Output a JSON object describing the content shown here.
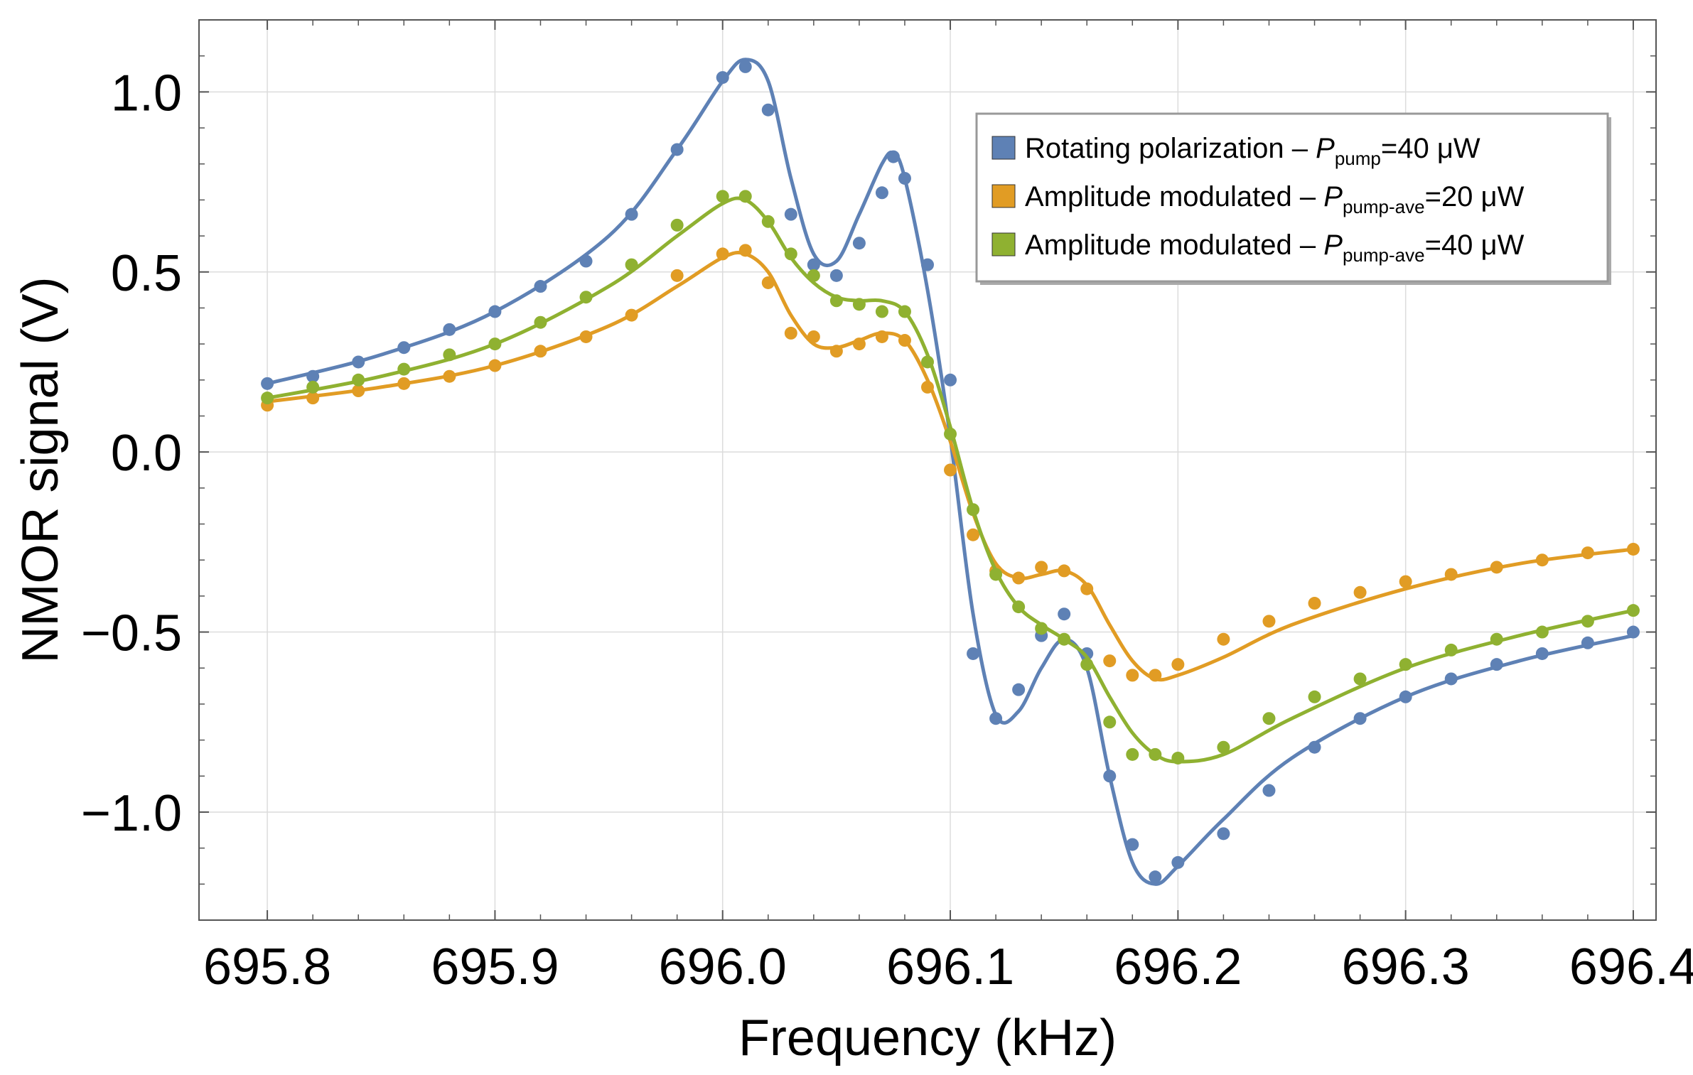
{
  "chart_data": {
    "type": "scatter",
    "title": "",
    "xlabel": "Frequency (kHz)",
    "ylabel": "NMOR signal (V)",
    "xlim": [
      695.77,
      696.41
    ],
    "ylim": [
      -1.3,
      1.2
    ],
    "xticks": [
      695.8,
      695.9,
      696.0,
      696.1,
      696.2,
      696.3,
      696.4
    ],
    "xtick_labels": [
      "695.8",
      "695.9",
      "696.0",
      "696.1",
      "696.2",
      "696.3",
      "696.4"
    ],
    "yticks": [
      1.0,
      0.5,
      0.0,
      -0.5,
      -1.0
    ],
    "ytick_labels": [
      "1.0",
      "0.5",
      "0.0",
      "−0.5",
      "−1.0"
    ],
    "grid": true,
    "legend_position": "top-right",
    "series": [
      {
        "name": "Rotating polarization",
        "legend_label": {
          "prefix": "Rotating polarization – ",
          "var": "P",
          "sub": "pump",
          "suffix": "=40 μW"
        },
        "color": "#5e81b5",
        "fit": [
          [
            695.8,
            0.19
          ],
          [
            695.85,
            0.27
          ],
          [
            695.9,
            0.39
          ],
          [
            695.95,
            0.6
          ],
          [
            695.98,
            0.84
          ],
          [
            696.0,
            1.03
          ],
          [
            696.01,
            1.09
          ],
          [
            696.02,
            1.03
          ],
          [
            696.03,
            0.76
          ],
          [
            696.04,
            0.55
          ],
          [
            696.05,
            0.53
          ],
          [
            696.06,
            0.66
          ],
          [
            696.07,
            0.8
          ],
          [
            696.075,
            0.83
          ],
          [
            696.08,
            0.76
          ],
          [
            696.09,
            0.45
          ],
          [
            696.1,
            0.04
          ],
          [
            696.11,
            -0.45
          ],
          [
            696.12,
            -0.73
          ],
          [
            696.13,
            -0.72
          ],
          [
            696.14,
            -0.6
          ],
          [
            696.15,
            -0.52
          ],
          [
            696.16,
            -0.6
          ],
          [
            696.17,
            -0.9
          ],
          [
            696.18,
            -1.14
          ],
          [
            696.19,
            -1.2
          ],
          [
            696.2,
            -1.15
          ],
          [
            696.22,
            -1.02
          ],
          [
            696.25,
            -0.85
          ],
          [
            696.3,
            -0.68
          ],
          [
            696.35,
            -0.58
          ],
          [
            696.4,
            -0.51
          ]
        ],
        "points": [
          [
            695.8,
            0.19
          ],
          [
            695.82,
            0.21
          ],
          [
            695.84,
            0.25
          ],
          [
            695.86,
            0.29
          ],
          [
            695.88,
            0.34
          ],
          [
            695.9,
            0.39
          ],
          [
            695.92,
            0.46
          ],
          [
            695.94,
            0.53
          ],
          [
            695.96,
            0.66
          ],
          [
            695.98,
            0.84
          ],
          [
            696.0,
            1.04
          ],
          [
            696.01,
            1.07
          ],
          [
            696.02,
            0.95
          ],
          [
            696.03,
            0.66
          ],
          [
            696.04,
            0.52
          ],
          [
            696.05,
            0.49
          ],
          [
            696.06,
            0.58
          ],
          [
            696.07,
            0.72
          ],
          [
            696.075,
            0.82
          ],
          [
            696.08,
            0.76
          ],
          [
            696.09,
            0.52
          ],
          [
            696.1,
            0.2
          ],
          [
            696.11,
            -0.56
          ],
          [
            696.12,
            -0.74
          ],
          [
            696.13,
            -0.66
          ],
          [
            696.14,
            -0.51
          ],
          [
            696.15,
            -0.45
          ],
          [
            696.16,
            -0.56
          ],
          [
            696.17,
            -0.9
          ],
          [
            696.18,
            -1.09
          ],
          [
            696.19,
            -1.18
          ],
          [
            696.2,
            -1.14
          ],
          [
            696.22,
            -1.06
          ],
          [
            696.24,
            -0.94
          ],
          [
            696.26,
            -0.82
          ],
          [
            696.28,
            -0.74
          ],
          [
            696.3,
            -0.68
          ],
          [
            696.32,
            -0.63
          ],
          [
            696.34,
            -0.59
          ],
          [
            696.36,
            -0.56
          ],
          [
            696.38,
            -0.53
          ],
          [
            696.4,
            -0.5
          ]
        ]
      },
      {
        "name": "Amplitude modulated 20 μW",
        "legend_label": {
          "prefix": "Amplitude modulated – ",
          "var": "P",
          "sub": "pump-ave",
          "suffix": "=20 μW"
        },
        "color": "#e19c24",
        "fit": [
          [
            695.8,
            0.14
          ],
          [
            695.85,
            0.18
          ],
          [
            695.9,
            0.24
          ],
          [
            695.95,
            0.35
          ],
          [
            695.98,
            0.46
          ],
          [
            696.0,
            0.54
          ],
          [
            696.01,
            0.55
          ],
          [
            696.02,
            0.5
          ],
          [
            696.03,
            0.38
          ],
          [
            696.04,
            0.3
          ],
          [
            696.05,
            0.29
          ],
          [
            696.06,
            0.31
          ],
          [
            696.07,
            0.33
          ],
          [
            696.08,
            0.31
          ],
          [
            696.09,
            0.2
          ],
          [
            696.1,
            0.03
          ],
          [
            696.11,
            -0.17
          ],
          [
            696.12,
            -0.31
          ],
          [
            696.13,
            -0.35
          ],
          [
            696.14,
            -0.34
          ],
          [
            696.15,
            -0.33
          ],
          [
            696.16,
            -0.37
          ],
          [
            696.17,
            -0.48
          ],
          [
            696.18,
            -0.58
          ],
          [
            696.19,
            -0.63
          ],
          [
            696.2,
            -0.62
          ],
          [
            696.22,
            -0.57
          ],
          [
            696.25,
            -0.48
          ],
          [
            696.3,
            -0.38
          ],
          [
            696.35,
            -0.31
          ],
          [
            696.4,
            -0.27
          ]
        ],
        "points": [
          [
            695.8,
            0.13
          ],
          [
            695.82,
            0.15
          ],
          [
            695.84,
            0.17
          ],
          [
            695.86,
            0.19
          ],
          [
            695.88,
            0.21
          ],
          [
            695.9,
            0.24
          ],
          [
            695.92,
            0.28
          ],
          [
            695.94,
            0.32
          ],
          [
            695.96,
            0.38
          ],
          [
            695.98,
            0.49
          ],
          [
            696.0,
            0.55
          ],
          [
            696.01,
            0.56
          ],
          [
            696.02,
            0.47
          ],
          [
            696.03,
            0.33
          ],
          [
            696.04,
            0.32
          ],
          [
            696.05,
            0.28
          ],
          [
            696.06,
            0.3
          ],
          [
            696.07,
            0.32
          ],
          [
            696.08,
            0.31
          ],
          [
            696.09,
            0.18
          ],
          [
            696.1,
            -0.05
          ],
          [
            696.11,
            -0.23
          ],
          [
            696.12,
            -0.33
          ],
          [
            696.13,
            -0.35
          ],
          [
            696.14,
            -0.32
          ],
          [
            696.15,
            -0.33
          ],
          [
            696.16,
            -0.38
          ],
          [
            696.17,
            -0.58
          ],
          [
            696.18,
            -0.62
          ],
          [
            696.19,
            -0.62
          ],
          [
            696.2,
            -0.59
          ],
          [
            696.22,
            -0.52
          ],
          [
            696.24,
            -0.47
          ],
          [
            696.26,
            -0.42
          ],
          [
            696.28,
            -0.39
          ],
          [
            696.3,
            -0.36
          ],
          [
            696.32,
            -0.34
          ],
          [
            696.34,
            -0.32
          ],
          [
            696.36,
            -0.3
          ],
          [
            696.38,
            -0.28
          ],
          [
            696.4,
            -0.27
          ]
        ]
      },
      {
        "name": "Amplitude modulated 40 μW",
        "legend_label": {
          "prefix": "Amplitude modulated – ",
          "var": "P",
          "sub": "pump-ave",
          "suffix": "=40 μW"
        },
        "color": "#8fb131",
        "fit": [
          [
            695.8,
            0.15
          ],
          [
            695.85,
            0.21
          ],
          [
            695.9,
            0.3
          ],
          [
            695.95,
            0.46
          ],
          [
            695.98,
            0.6
          ],
          [
            696.0,
            0.69
          ],
          [
            696.01,
            0.7
          ],
          [
            696.02,
            0.64
          ],
          [
            696.03,
            0.54
          ],
          [
            696.04,
            0.47
          ],
          [
            696.05,
            0.43
          ],
          [
            696.06,
            0.42
          ],
          [
            696.07,
            0.42
          ],
          [
            696.08,
            0.39
          ],
          [
            696.09,
            0.27
          ],
          [
            696.1,
            0.07
          ],
          [
            696.11,
            -0.16
          ],
          [
            696.12,
            -0.33
          ],
          [
            696.13,
            -0.43
          ],
          [
            696.14,
            -0.48
          ],
          [
            696.15,
            -0.52
          ],
          [
            696.16,
            -0.57
          ],
          [
            696.17,
            -0.68
          ],
          [
            696.18,
            -0.78
          ],
          [
            696.19,
            -0.84
          ],
          [
            696.2,
            -0.86
          ],
          [
            696.22,
            -0.84
          ],
          [
            696.25,
            -0.74
          ],
          [
            696.3,
            -0.6
          ],
          [
            696.35,
            -0.51
          ],
          [
            696.4,
            -0.44
          ]
        ],
        "points": [
          [
            695.8,
            0.15
          ],
          [
            695.82,
            0.18
          ],
          [
            695.84,
            0.2
          ],
          [
            695.86,
            0.23
          ],
          [
            695.88,
            0.27
          ],
          [
            695.9,
            0.3
          ],
          [
            695.92,
            0.36
          ],
          [
            695.94,
            0.43
          ],
          [
            695.96,
            0.52
          ],
          [
            695.98,
            0.63
          ],
          [
            696.0,
            0.71
          ],
          [
            696.01,
            0.71
          ],
          [
            696.02,
            0.64
          ],
          [
            696.03,
            0.55
          ],
          [
            696.04,
            0.49
          ],
          [
            696.05,
            0.42
          ],
          [
            696.06,
            0.41
          ],
          [
            696.07,
            0.39
          ],
          [
            696.08,
            0.39
          ],
          [
            696.09,
            0.25
          ],
          [
            696.1,
            0.05
          ],
          [
            696.11,
            -0.16
          ],
          [
            696.12,
            -0.34
          ],
          [
            696.13,
            -0.43
          ],
          [
            696.14,
            -0.49
          ],
          [
            696.15,
            -0.52
          ],
          [
            696.16,
            -0.59
          ],
          [
            696.17,
            -0.75
          ],
          [
            696.18,
            -0.84
          ],
          [
            696.19,
            -0.84
          ],
          [
            696.2,
            -0.85
          ],
          [
            696.22,
            -0.82
          ],
          [
            696.24,
            -0.74
          ],
          [
            696.26,
            -0.68
          ],
          [
            696.28,
            -0.63
          ],
          [
            696.3,
            -0.59
          ],
          [
            696.32,
            -0.55
          ],
          [
            696.34,
            -0.52
          ],
          [
            696.36,
            -0.5
          ],
          [
            696.38,
            -0.47
          ],
          [
            696.4,
            -0.44
          ]
        ]
      }
    ]
  }
}
